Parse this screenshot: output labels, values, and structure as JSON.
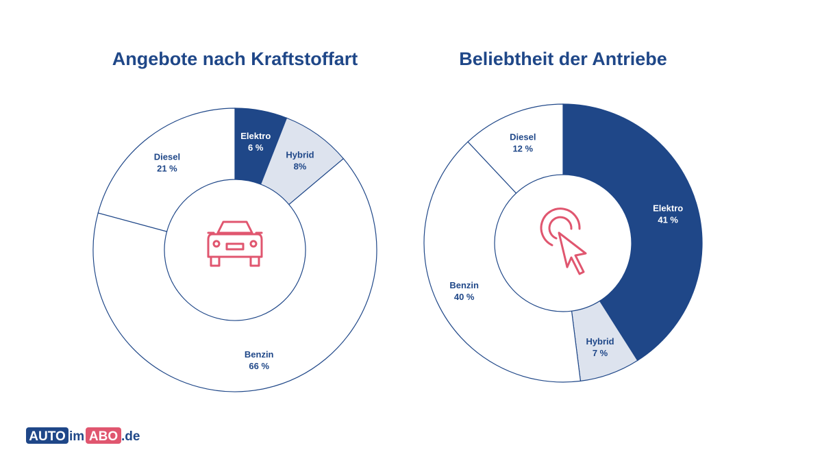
{
  "chart_data": [
    {
      "type": "donut",
      "title": "Angebote nach Kraftstoffart",
      "categories": [
        "Elektro",
        "Hybrid",
        "Benzin",
        "Diesel"
      ],
      "values": [
        6,
        8,
        66,
        21
      ],
      "value_labels": [
        "6 %",
        "8%",
        "66 %",
        "21 %"
      ],
      "colors": [
        "#1f4788",
        "#dde3ee",
        "#ffffff",
        "#ffffff"
      ]
    },
    {
      "type": "donut",
      "title": "Beliebtheit der Antriebe",
      "categories": [
        "Elektro",
        "Hybrid",
        "Benzin",
        "Diesel"
      ],
      "values": [
        41,
        7,
        40,
        12
      ],
      "value_labels": [
        "41 %",
        "7 %",
        "40 %",
        "12 %"
      ],
      "colors": [
        "#1f4788",
        "#dde3ee",
        "#ffffff",
        "#ffffff"
      ]
    }
  ],
  "logo": {
    "parts": [
      "AUTO",
      "im",
      "ABO",
      ".de"
    ]
  }
}
